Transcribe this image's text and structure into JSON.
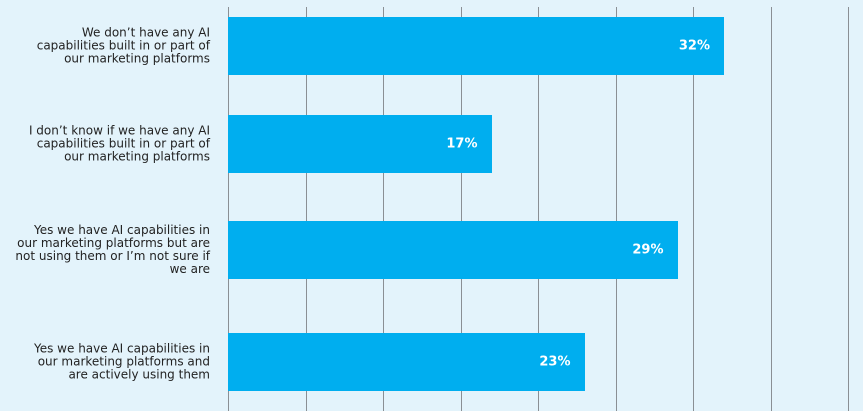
{
  "chart_data": {
    "type": "bar",
    "orientation": "horizontal",
    "categories": [
      "We don’t have any AI capabilities built in or part of our marketing platforms",
      "I don’t know if we have any AI capabilities built in or part of our marketing platforms",
      "Yes we have AI capabilities in our marketing platforms but are not using them or I’m not sure if we are",
      "Yes we have AI capabilities in our marketing platforms and are actively using them"
    ],
    "values": [
      32,
      17,
      29,
      23
    ],
    "value_labels": [
      "32%",
      "17%",
      "29%",
      "23%"
    ],
    "color": "#00aeef",
    "xlim": [
      0,
      40
    ],
    "xticks": [
      0,
      5,
      10,
      15,
      20,
      25,
      30,
      35,
      40
    ],
    "grid": true
  }
}
